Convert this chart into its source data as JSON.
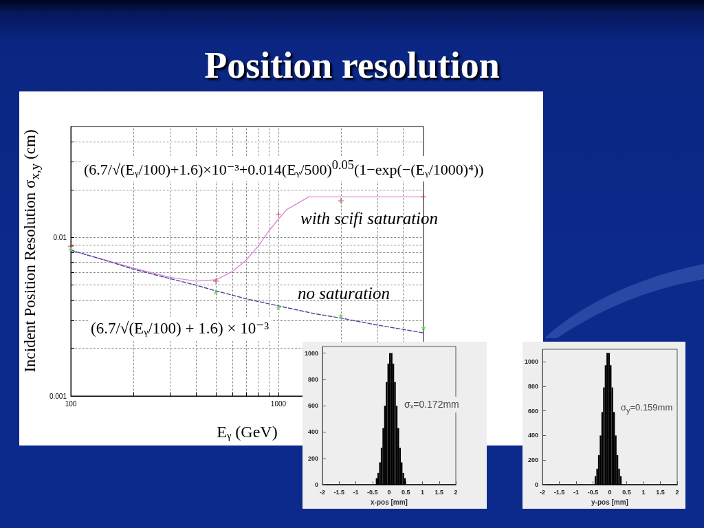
{
  "chart_data": [
    {
      "type": "line",
      "title": "Position resolution",
      "xlabel": "Eᵧ (GeV)",
      "ylabel": "Incident Position Resolution σ$_{x,y}$ (cm)",
      "log": "xy",
      "xlim": [
        100,
        5000
      ],
      "ylim": [
        0.001,
        0.05
      ],
      "xticks": [
        100,
        {
          "value": 200,
          "label": null
        },
        {
          "value": 300,
          "label": null
        },
        {
          "value": 400,
          "label": null
        },
        {
          "value": 500,
          "label": null
        },
        {
          "value": 600,
          "label": null
        },
        {
          "value": 700,
          "label": null
        },
        {
          "value": 800,
          "label": null
        },
        {
          "value": 900,
          "label": null
        },
        1000,
        {
          "value": 2000,
          "label": null
        },
        {
          "value": 3000,
          "label": null
        },
        {
          "value": 4000,
          "label": null
        }
      ],
      "yticks": [
        0.001,
        {
          "value": 0.002,
          "label": null
        },
        {
          "value": 0.003,
          "label": null
        },
        {
          "value": 0.004,
          "label": null
        },
        {
          "value": 0.005,
          "label": null
        },
        {
          "value": 0.006,
          "label": null
        },
        {
          "value": 0.007,
          "label": null
        },
        {
          "value": 0.008,
          "label": null
        },
        {
          "value": 0.009,
          "label": null
        },
        0.01,
        {
          "value": 0.02,
          "label": null
        },
        {
          "value": 0.03,
          "label": null
        },
        {
          "value": 0.04,
          "label": null
        }
      ],
      "grid": true,
      "annotations": [
        "(6.7/√(Eᵧ/100)+1.6)×10⁻³+0.014(Eᵧ/500)$^{0.05}$(1−exp(−(Eᵧ/1000)⁴))",
        "(6.7/√(Eᵧ/100) + 1.6) × 10⁻³"
      ],
      "series": [
        {
          "name": "with scifi saturation",
          "color": "#dd88d6",
          "marker": "none",
          "line_style": "solid",
          "x": [
            100,
            200,
            300,
            400,
            500,
            600,
            700,
            800,
            900,
            1000,
            1100,
            1200,
            1400,
            1600,
            2000,
            3000,
            5000
          ],
          "values": [
            0.0083,
            0.0064,
            0.0056,
            0.0053,
            0.0054,
            0.0061,
            0.0072,
            0.0088,
            0.011,
            0.013,
            0.015,
            0.016,
            0.018,
            0.018,
            0.018,
            0.018,
            0.018
          ]
        },
        {
          "name": "no saturation",
          "color": "#4a4a9a",
          "marker": "none",
          "line_style": "dashed",
          "x": [
            100,
            150,
            200,
            300,
            400,
            500,
            700,
            1000,
            1500,
            2000,
            3000,
            5000
          ],
          "values": [
            0.0083,
            0.0071,
            0.0063,
            0.0055,
            0.005,
            0.0046,
            0.0041,
            0.0037,
            0.0033,
            0.0031,
            0.0028,
            0.0025
          ]
        },
        {
          "type": "scatter",
          "color": "#b03a3a",
          "marker": "cross",
          "x": [
            100,
            500,
            1000,
            2000,
            5000
          ],
          "values": [
            0.0088,
            0.0053,
            0.014,
            0.017,
            0.018
          ]
        },
        {
          "type": "scatter",
          "color": "#5ed65e",
          "marker": "star",
          "x": [
            100,
            500,
            1000,
            2000,
            5000
          ],
          "values": [
            0.0084,
            0.0045,
            0.0036,
            0.0032,
            0.0027
          ]
        }
      ]
    },
    {
      "type": "histogram",
      "xlabel": "x-pos [mm]",
      "xlim": [
        -2,
        2
      ],
      "ylim": [
        0,
        1050
      ],
      "xticks": [
        -2,
        -1.5,
        -1,
        -0.5,
        0,
        0.5,
        1,
        1.5,
        2
      ],
      "yticks": [
        0,
        200,
        400,
        600,
        800,
        1000
      ],
      "color": "#000000",
      "annotations": [
        "σₓ=0.172mm"
      ],
      "bins": [
        -0.4,
        -0.35,
        -0.3,
        -0.25,
        -0.2,
        -0.15,
        -0.1,
        -0.05,
        0,
        0.05,
        0.1,
        0.15,
        0.2,
        0.25,
        0.3,
        0.35,
        0.4,
        0.45,
        0.5
      ],
      "values": [
        50,
        90,
        170,
        280,
        430,
        600,
        780,
        920,
        1000,
        1000,
        920,
        780,
        600,
        430,
        280,
        170,
        90,
        50
      ]
    },
    {
      "type": "histogram",
      "xlabel": "y-pos [mm]",
      "xlim": [
        -2,
        2
      ],
      "ylim": [
        0,
        1100
      ],
      "xticks": [
        -2,
        -1.5,
        -1,
        -0.5,
        0,
        0.5,
        1,
        1.5,
        2
      ],
      "yticks": [
        0,
        200,
        400,
        600,
        800,
        1000
      ],
      "color": "#000000",
      "annotations": [
        "σ$_{y}$=0.159mm"
      ],
      "bins": [
        -0.45,
        -0.4,
        -0.35,
        -0.3,
        -0.25,
        -0.2,
        -0.15,
        -0.1,
        -0.05,
        0,
        0.05,
        0.1,
        0.15,
        0.2,
        0.25,
        0.3,
        0.35
      ],
      "values": [
        70,
        130,
        240,
        400,
        590,
        790,
        970,
        1070,
        1070,
        970,
        790,
        590,
        400,
        240,
        130,
        70
      ]
    }
  ]
}
